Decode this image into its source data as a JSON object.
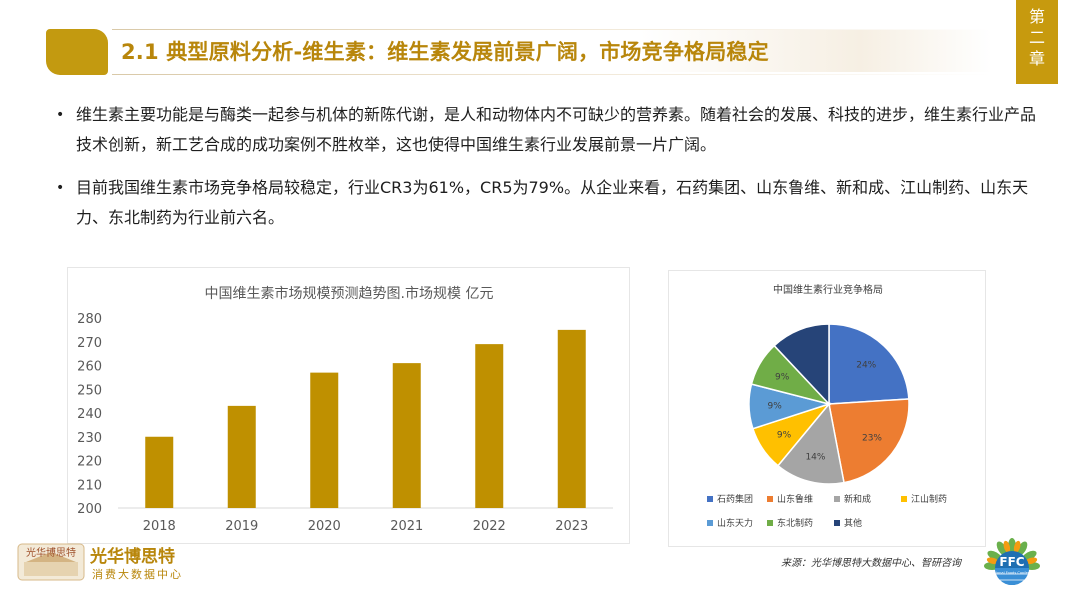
{
  "header": {
    "title": "2.1 典型原料分析-维生素：维生素发展前景广阔，市场竞争格局稳定",
    "chapter_chars": [
      "第",
      "二",
      "章"
    ]
  },
  "bullets": [
    "维生素主要功能是与酶类一起参与机体的新陈代谢，是人和动物体内不可缺少的营养素。随着社会的发展、科技的进步，维生素行业产品技术创新，新工艺合成的成功案例不胜枚举，这也使得中国维生素行业发展前景一片广阔。",
    "目前我国维生素市场竞争格局较稳定，行业CR3为61%，CR5为79%。从企业来看，石药集团、山东鲁维、新和成、江山制药、山东天力、东北制药为行业前六名。"
  ],
  "chart_data": [
    {
      "type": "bar",
      "title": "中国维生素市场规模预测趋势图.市场规模 亿元",
      "categories": [
        "2018",
        "2019",
        "2020",
        "2021",
        "2022",
        "2023"
      ],
      "values": [
        230,
        243,
        257,
        261,
        269,
        275
      ],
      "ylim": [
        200,
        280
      ],
      "yticks": [
        "200",
        "210",
        "220",
        "230",
        "240",
        "250",
        "260",
        "270",
        "280"
      ],
      "color": "#bf9000",
      "grid": false
    },
    {
      "type": "pie",
      "title": "中国维生素行业竞争格局",
      "slices": [
        {
          "name": "石药集团",
          "value": 24,
          "label": "24%",
          "color": "#4472c4"
        },
        {
          "name": "山东鲁维",
          "value": 23,
          "label": "23%",
          "color": "#ed7d31"
        },
        {
          "name": "新和成",
          "value": 14,
          "label": "14%",
          "color": "#a5a5a5"
        },
        {
          "name": "江山制药",
          "value": 9,
          "label": "9%",
          "color": "#ffc000"
        },
        {
          "name": "山东天力",
          "value": 9,
          "label": "9%",
          "color": "#5b9bd5"
        },
        {
          "name": "东北制药",
          "value": 9,
          "label": "9%",
          "color": "#70ad47"
        },
        {
          "name": "其他",
          "value": 12,
          "label": "",
          "color": "#264478"
        }
      ],
      "legend_position": "bottom"
    }
  ],
  "footer": {
    "source": "来源：光华博思特大数据中心、智研咨询",
    "logo_name": "光华博思特",
    "logo_sub": "消费大数据中心",
    "logo_stamp": "光华博思特",
    "ffc_text": "FFC",
    "ffc_sub": "Functional Foods Conference"
  },
  "colors": {
    "accent": "#c39a10",
    "title_text": "#b8860b"
  }
}
